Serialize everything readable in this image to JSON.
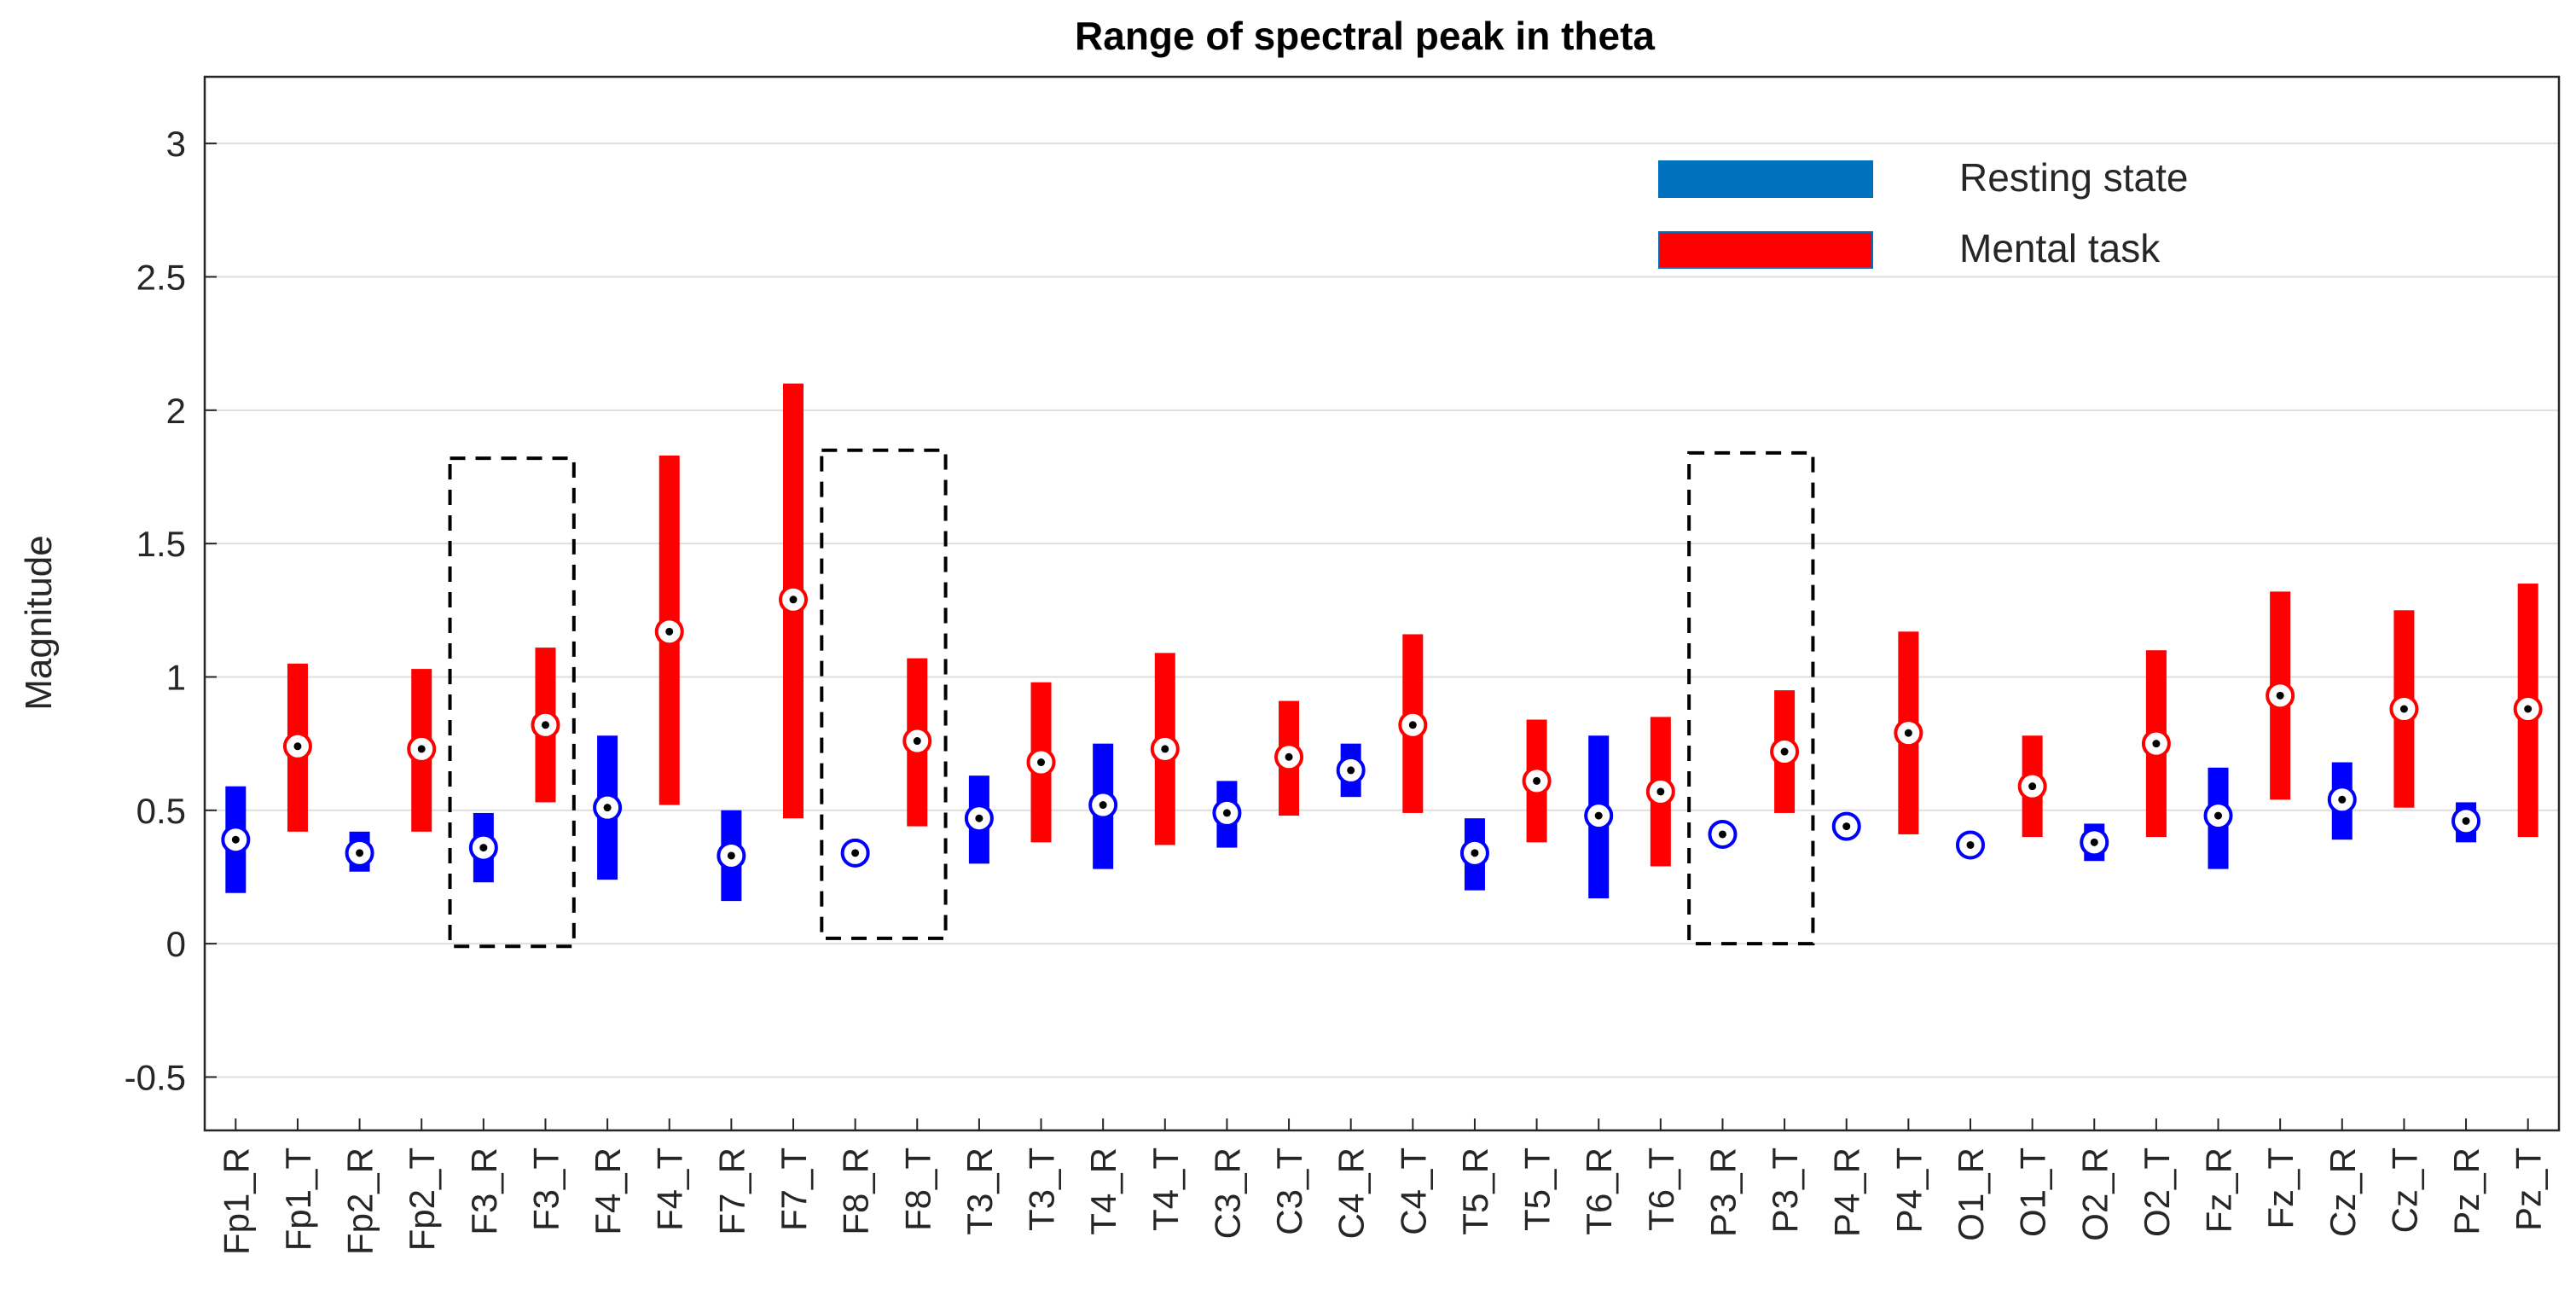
{
  "chart_data": {
    "type": "range",
    "title": "Range of spectral peak in theta",
    "xlabel": "",
    "ylabel": "Magnitude",
    "ylim": [
      -0.7,
      3.25
    ],
    "yticks": [
      -0.5,
      0,
      0.5,
      1,
      1.5,
      2,
      2.5,
      3
    ],
    "ytick_labels": [
      "-0.5",
      "0",
      "0.5",
      "1",
      "1.5",
      "2",
      "2.5",
      "3"
    ],
    "grid": true,
    "legend_position": "top-right",
    "colors": {
      "rest": "#0000ff",
      "task": "#ff0000",
      "legend_rest": "#0072bd",
      "legend_task": "#ff0000"
    },
    "legend": [
      {
        "label": "Resting state",
        "series": "rest"
      },
      {
        "label": "Mental task",
        "series": "task"
      }
    ],
    "categories": [
      "Fp1_R",
      "Fp1_T",
      "Fp2_R",
      "Fp2_T",
      "F3_R",
      "F3_T",
      "F4_R",
      "F4_T",
      "F7_R",
      "F7_T",
      "F8_R",
      "F8_T",
      "T3_R",
      "T3_T",
      "T4_R",
      "T4_T",
      "C3_R",
      "C3_T",
      "C4_R",
      "C4_T",
      "T5_R",
      "T5_T",
      "T6_R",
      "T6_T",
      "P3_R",
      "P3_T",
      "P4_R",
      "P4_T",
      "O1_R",
      "O1_T",
      "O2_R",
      "O2_T",
      "Fz_R",
      "Fz_T",
      "Cz_R",
      "Cz_T",
      "Pz_R",
      "Pz_T"
    ],
    "series_type": [
      "rest",
      "task",
      "rest",
      "task",
      "rest",
      "task",
      "rest",
      "task",
      "rest",
      "task",
      "rest",
      "task",
      "rest",
      "task",
      "rest",
      "task",
      "rest",
      "task",
      "rest",
      "task",
      "rest",
      "task",
      "rest",
      "task",
      "rest",
      "task",
      "rest",
      "task",
      "rest",
      "task",
      "rest",
      "task",
      "rest",
      "task",
      "rest",
      "task",
      "rest",
      "task"
    ],
    "low": [
      0.19,
      0.42,
      0.27,
      0.42,
      0.23,
      0.53,
      0.24,
      0.52,
      0.16,
      0.47,
      0.3,
      0.44,
      0.3,
      0.38,
      0.28,
      0.37,
      0.36,
      0.48,
      0.55,
      0.49,
      0.2,
      0.38,
      0.17,
      0.29,
      0.38,
      0.49,
      0.41,
      0.41,
      0.34,
      0.4,
      0.31,
      0.4,
      0.28,
      0.54,
      0.39,
      0.51,
      0.38,
      0.4
    ],
    "high": [
      0.59,
      1.05,
      0.42,
      1.03,
      0.49,
      1.11,
      0.78,
      1.83,
      0.5,
      2.1,
      0.36,
      1.07,
      0.63,
      0.98,
      0.75,
      1.09,
      0.61,
      0.91,
      0.75,
      1.16,
      0.47,
      0.84,
      0.78,
      0.85,
      0.44,
      0.95,
      0.47,
      1.17,
      0.39,
      0.78,
      0.45,
      1.1,
      0.66,
      1.32,
      0.68,
      1.25,
      0.53,
      1.35
    ],
    "median": [
      0.39,
      0.74,
      0.34,
      0.73,
      0.36,
      0.82,
      0.51,
      1.17,
      0.33,
      1.29,
      0.34,
      0.76,
      0.47,
      0.68,
      0.52,
      0.73,
      0.49,
      0.7,
      0.65,
      0.82,
      0.34,
      0.61,
      0.48,
      0.57,
      0.41,
      0.72,
      0.44,
      0.79,
      0.37,
      0.59,
      0.38,
      0.75,
      0.48,
      0.93,
      0.54,
      0.88,
      0.46,
      0.88
    ],
    "highlight_boxes": [
      {
        "from": "F3_R",
        "to": "F3_T",
        "ymin": -0.01,
        "ymax": 1.82
      },
      {
        "from": "F8_R",
        "to": "F8_T",
        "ymin": 0.02,
        "ymax": 1.85
      },
      {
        "from": "P3_R",
        "to": "P3_T",
        "ymin": 0.0,
        "ymax": 1.84
      }
    ]
  }
}
